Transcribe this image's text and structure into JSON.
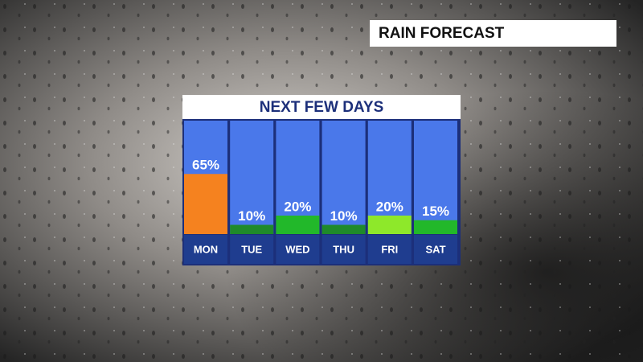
{
  "header": {
    "title": "RAIN FORECAST"
  },
  "chart_data": {
    "type": "bar",
    "title": "NEXT FEW DAYS",
    "categories": [
      "MON",
      "TUE",
      "WED",
      "THU",
      "FRI",
      "SAT"
    ],
    "values": [
      65,
      10,
      20,
      10,
      20,
      15
    ],
    "value_labels": [
      "65%",
      "10%",
      "20%",
      "10%",
      "20%",
      "15%"
    ],
    "colors": [
      "#f5821f",
      "#1f8a2a",
      "#22b82a",
      "#1f8a2a",
      "#8ee82a",
      "#22b82a"
    ],
    "ylim": [
      0,
      100
    ]
  }
}
